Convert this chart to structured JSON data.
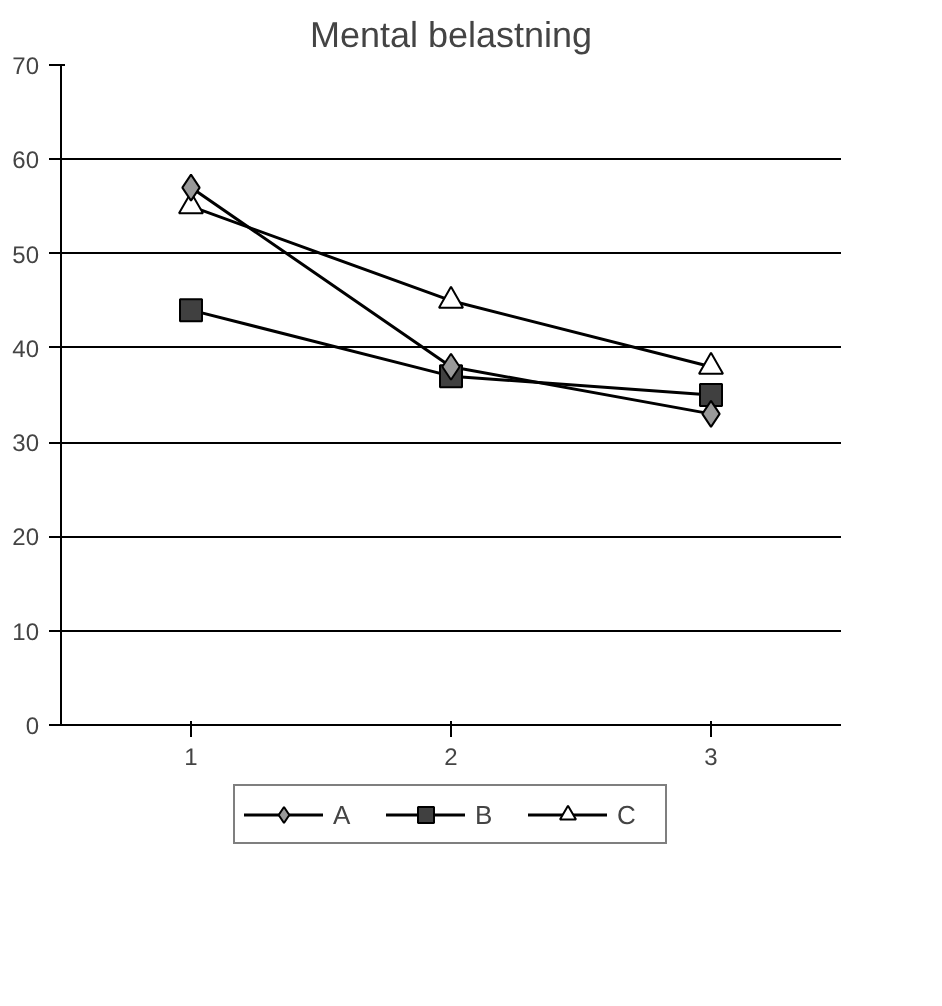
{
  "chart_data": {
    "type": "line",
    "title": "Mental belastning",
    "categories": [
      "1",
      "2",
      "3"
    ],
    "series": [
      {
        "name": "A",
        "color": "#999999",
        "marker": "diamond",
        "values": [
          57,
          38,
          33
        ]
      },
      {
        "name": "B",
        "color": "#404040",
        "marker": "square",
        "values": [
          44,
          37,
          35
        ]
      },
      {
        "name": "C",
        "color": "#ffffff",
        "marker": "triangle",
        "values": [
          55,
          45,
          38
        ]
      }
    ],
    "ylim": [
      0,
      70
    ],
    "yticks": [
      0,
      10,
      20,
      30,
      40,
      50,
      60,
      70
    ],
    "grid": "y",
    "legend": "bottom",
    "line_style": "solid"
  }
}
